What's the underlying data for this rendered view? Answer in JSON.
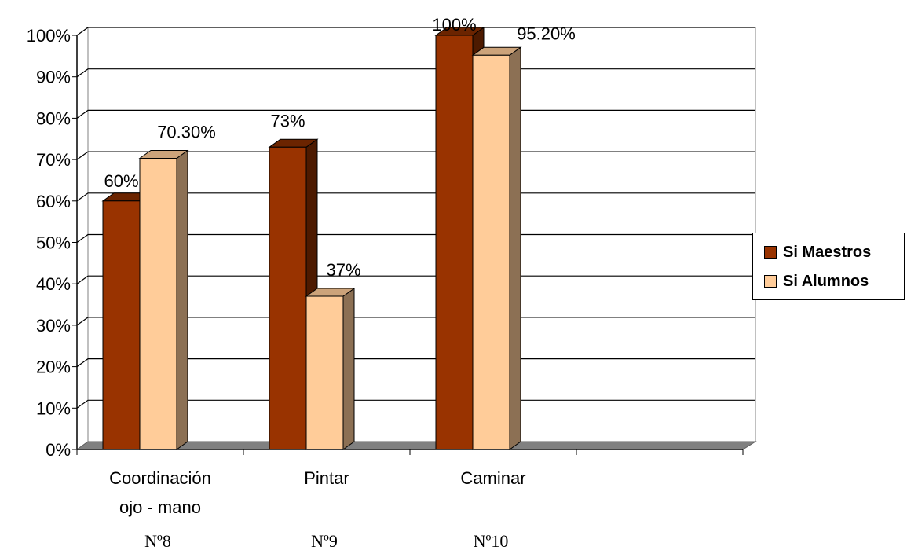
{
  "chart_data": {
    "type": "bar",
    "categories": [
      "Coordinación\nojo - mano",
      "Pintar",
      "Caminar"
    ],
    "sublabels": [
      "Nº8",
      "Nº9",
      "Nº10"
    ],
    "series": [
      {
        "name": "Si Maestros",
        "values": [
          60,
          73,
          100
        ],
        "labels": [
          "60%",
          "73%",
          "100%"
        ],
        "color": "#993300"
      },
      {
        "name": "Si Alumnos",
        "values": [
          70.3,
          37,
          95.2
        ],
        "labels": [
          "70.30%",
          "37%",
          "95.20%"
        ],
        "color": "#FFCC99"
      }
    ],
    "ylim": [
      0,
      100
    ],
    "yticks": [
      "0%",
      "10%",
      "20%",
      "30%",
      "40%",
      "50%",
      "60%",
      "70%",
      "80%",
      "90%",
      "100%"
    ],
    "grid": true,
    "legend_position": "right"
  }
}
